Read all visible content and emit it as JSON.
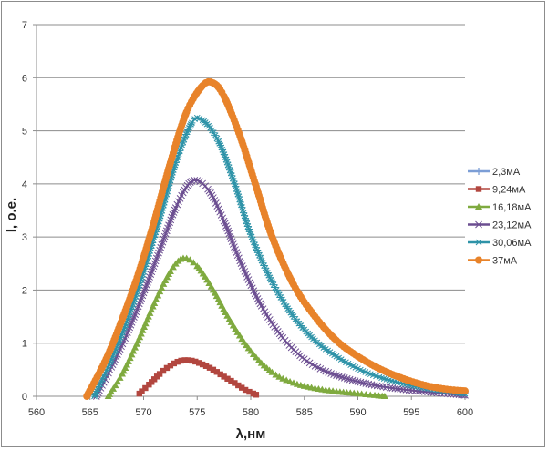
{
  "chart_data": {
    "type": "scatter",
    "title": "",
    "xlabel": "λ,нм",
    "ylabel": "I, о.е.",
    "xlim": [
      560,
      600
    ],
    "ylim": [
      0,
      7
    ],
    "x_ticks": [
      "560",
      "565",
      "570",
      "575",
      "580",
      "585",
      "590",
      "595",
      "600"
    ],
    "y_ticks": [
      "0",
      "1",
      "2",
      "3",
      "4",
      "5",
      "6",
      "7"
    ],
    "grid": "horizontal",
    "legend_position": "right",
    "series": [
      {
        "name": "2,3мА",
        "color": "#7c9ed6",
        "marker": "plus",
        "x": [],
        "y": []
      },
      {
        "name": "9,24мА",
        "color": "#b2463f",
        "marker": "square",
        "x": [
          569.6,
          570.5,
          571.5,
          572.5,
          573.5,
          574.5,
          575.5,
          576.5,
          577.5,
          578.5,
          579.5,
          580.5
        ],
        "y": [
          0.05,
          0.22,
          0.42,
          0.58,
          0.67,
          0.67,
          0.6,
          0.5,
          0.37,
          0.25,
          0.12,
          0.03
        ]
      },
      {
        "name": "16,18мА",
        "color": "#7faa3f",
        "marker": "triangle",
        "x": [
          566.7,
          568,
          569.5,
          571,
          572.5,
          573.7,
          575,
          576.5,
          578,
          580,
          582,
          584,
          586,
          588,
          590,
          592.5
        ],
        "y": [
          0.0,
          0.42,
          1.05,
          1.75,
          2.35,
          2.6,
          2.45,
          2.0,
          1.45,
          0.85,
          0.45,
          0.25,
          0.15,
          0.09,
          0.05,
          0.0
        ]
      },
      {
        "name": "23,12мА",
        "color": "#6c4e91",
        "marker": "x",
        "x": [
          565.6,
          567,
          568.5,
          570,
          571.5,
          573,
          574.5,
          576,
          577.5,
          579,
          581,
          583,
          585,
          587,
          589,
          591,
          593,
          596,
          600
        ],
        "y": [
          0.0,
          0.55,
          1.2,
          1.95,
          2.75,
          3.55,
          4.05,
          3.9,
          3.3,
          2.55,
          1.7,
          1.1,
          0.7,
          0.47,
          0.33,
          0.23,
          0.16,
          0.09,
          0.02
        ]
      },
      {
        "name": "30,06мА",
        "color": "#2e93a8",
        "marker": "asterisk",
        "x": [
          565.4,
          567,
          568.5,
          570,
          571.5,
          573,
          574.5,
          575.5,
          577,
          578.5,
          580,
          582,
          584,
          586,
          588,
          590,
          592,
          595,
          598,
          600
        ],
        "y": [
          0.0,
          0.7,
          1.45,
          2.35,
          3.35,
          4.4,
          5.15,
          5.2,
          4.8,
          4.0,
          3.05,
          2.15,
          1.5,
          1.05,
          0.75,
          0.52,
          0.36,
          0.2,
          0.1,
          0.05
        ]
      },
      {
        "name": "37мА",
        "color": "#e8832a",
        "marker": "circle",
        "x": [
          564.7,
          566.5,
          568,
          569.5,
          571,
          572.5,
          574,
          575.5,
          576.5,
          577.5,
          579,
          580.5,
          582,
          584,
          586,
          588,
          590,
          592,
          594,
          596,
          598,
          600
        ],
        "y": [
          0.0,
          0.7,
          1.45,
          2.3,
          3.3,
          4.4,
          5.35,
          5.85,
          5.9,
          5.65,
          4.9,
          3.95,
          3.0,
          2.1,
          1.5,
          1.05,
          0.75,
          0.52,
          0.35,
          0.22,
          0.14,
          0.1
        ]
      }
    ]
  }
}
